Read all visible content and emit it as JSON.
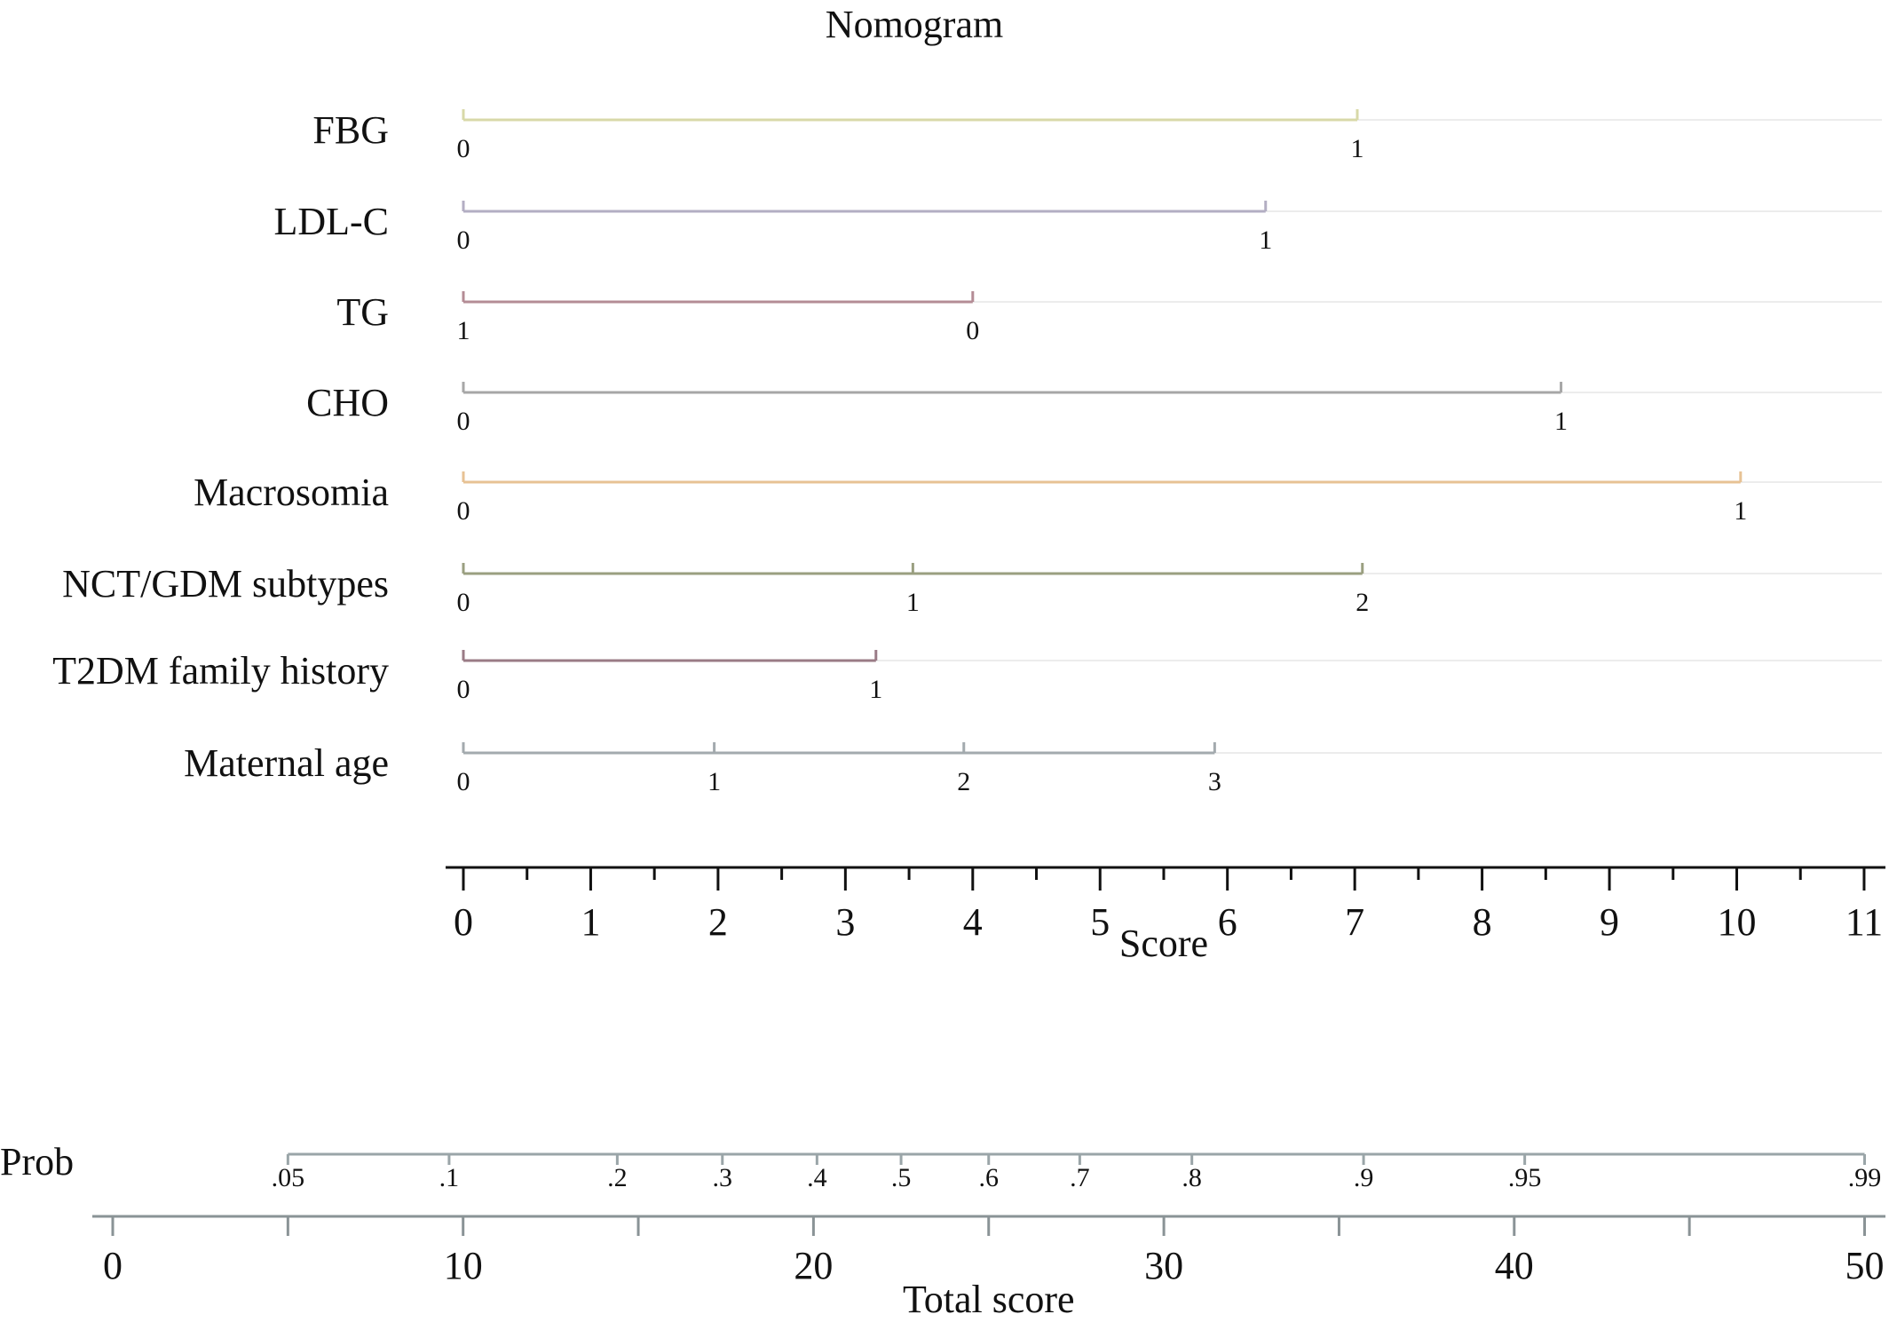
{
  "chart_data": {
    "type": "nomogram",
    "title": "Nomogram",
    "variables": [
      {
        "name": "FBG",
        "color": "#d8d9a8",
        "points": [
          {
            "label": "0",
            "score": 0
          },
          {
            "label": "1",
            "score": 7.02
          }
        ]
      },
      {
        "name": "LDL-C",
        "color": "#b3aec3",
        "points": [
          {
            "label": "0",
            "score": 0
          },
          {
            "label": "1",
            "score": 6.3
          }
        ]
      },
      {
        "name": "TG",
        "color": "#b48c95",
        "points": [
          {
            "label": "1",
            "score": 0
          },
          {
            "label": "0",
            "score": 4.0
          }
        ]
      },
      {
        "name": "CHO",
        "color": "#a7a7a7",
        "points": [
          {
            "label": "0",
            "score": 0
          },
          {
            "label": "1",
            "score": 8.62
          }
        ]
      },
      {
        "name": "Macrosomia",
        "color": "#e7c294",
        "points": [
          {
            "label": "0",
            "score": 0
          },
          {
            "label": "1",
            "score": 10.03
          }
        ]
      },
      {
        "name": "NCT/GDM subtypes",
        "color": "#9a9f80",
        "points": [
          {
            "label": "0",
            "score": 0
          },
          {
            "label": "1",
            "score": 3.53
          },
          {
            "label": "2",
            "score": 7.06
          }
        ]
      },
      {
        "name": "T2DM family history",
        "color": "#9a7b86",
        "points": [
          {
            "label": "0",
            "score": 0
          },
          {
            "label": "1",
            "score": 3.24
          }
        ]
      },
      {
        "name": "Maternal age",
        "color": "#a3aaae",
        "points": [
          {
            "label": "0",
            "score": 0
          },
          {
            "label": "1",
            "score": 1.97
          },
          {
            "label": "2",
            "score": 3.93
          },
          {
            "label": "3",
            "score": 5.9
          }
        ]
      }
    ],
    "score_axis": {
      "label": "Score",
      "range": [
        0,
        11
      ],
      "major_ticks": [
        0,
        1,
        2,
        3,
        4,
        5,
        6,
        7,
        8,
        9,
        10,
        11
      ],
      "tick_labels": [
        "0",
        "1",
        "2",
        "3",
        "4",
        "5",
        "6",
        "7",
        "8",
        "9",
        "10",
        "11"
      ]
    },
    "prob_axis": {
      "label": "Prob",
      "color": "#9aa5a8",
      "ticks": [
        {
          "label": ".05",
          "total": 5.0
        },
        {
          "label": ".1",
          "total": 9.6
        },
        {
          "label": ".2",
          "total": 14.4
        },
        {
          "label": ".3",
          "total": 17.4
        },
        {
          "label": ".4",
          "total": 20.1
        },
        {
          "label": ".5",
          "total": 22.5
        },
        {
          "label": ".6",
          "total": 25.0
        },
        {
          "label": ".7",
          "total": 27.6
        },
        {
          "label": ".8",
          "total": 30.8
        },
        {
          "label": ".9",
          "total": 35.7
        },
        {
          "label": ".95",
          "total": 40.3
        },
        {
          "label": ".99",
          "total": 50.0
        }
      ]
    },
    "total_axis": {
      "label": "Total score",
      "range": [
        0,
        50
      ],
      "major_ticks": [
        0,
        10,
        20,
        30,
        40,
        50
      ],
      "tick_labels": [
        "0",
        "10",
        "20",
        "30",
        "40",
        "50"
      ]
    }
  }
}
